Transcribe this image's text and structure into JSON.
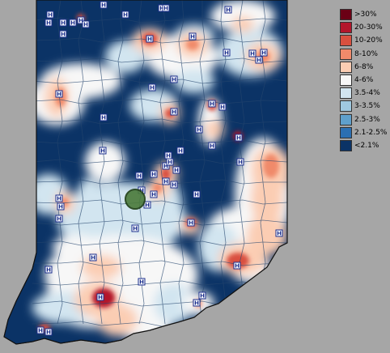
{
  "legend": {
    "items": [
      {
        "label": ">30%",
        "color": "#6b0015"
      },
      {
        "label": "20-30%",
        "color": "#b3162b"
      },
      {
        "label": "10-20%",
        "color": "#d9503f"
      },
      {
        "label": "8-10%",
        "color": "#f08a6b"
      },
      {
        "label": "6-8%",
        "color": "#fbcdb3"
      },
      {
        "label": "4-6%",
        "color": "#f7f7f7"
      },
      {
        "label": "3.5-4%",
        "color": "#d2e5f0"
      },
      {
        "label": "3-3.5%",
        "color": "#9fc8e0"
      },
      {
        "label": "2.5-3%",
        "color": "#5fa0cc"
      },
      {
        "label": "2.1-2.5%",
        "color": "#2b6fb2"
      },
      {
        "label": "<2.1%",
        "color": "#0b3366"
      }
    ]
  },
  "map": {
    "background_color": "#0b3366",
    "marker_letter": "H",
    "marker_icon": "hospital-icon",
    "highlight_icon": "green-circle-marker-icon"
  }
}
